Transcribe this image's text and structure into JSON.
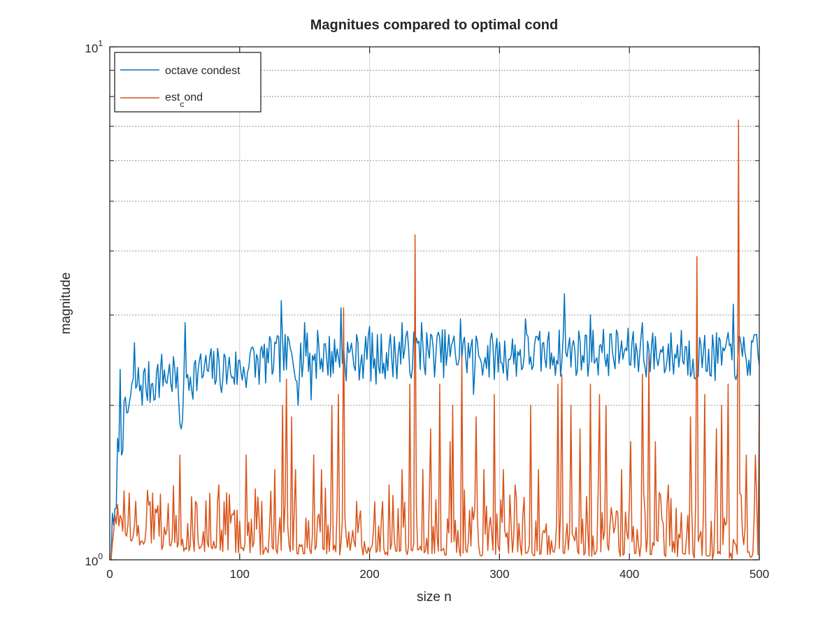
{
  "chart_data": {
    "type": "line",
    "title": "Magnitues compared to optimal cond",
    "xlabel": "size n",
    "ylabel": "magnitude",
    "xlim": [
      0,
      500
    ],
    "ylim": [
      1,
      10
    ],
    "yscale": "log",
    "grid": true,
    "legend_position": "top-left",
    "x_ticks": [
      "0",
      "100",
      "200",
      "300",
      "400",
      "500"
    ],
    "y_ticks": [
      {
        "base": "10",
        "exp": "0"
      },
      {
        "base": "10",
        "exp": "1"
      }
    ],
    "series_count_per_series": 500,
    "series": [
      {
        "name": "octave condest",
        "color": "#0072BD",
        "legend_label": "octave condest",
        "anchors": [
          [
            1,
            1.0
          ],
          [
            2,
            1.13
          ],
          [
            4,
            1.15
          ],
          [
            5,
            1.4
          ],
          [
            6,
            1.6
          ],
          [
            8,
            1.75
          ],
          [
            10,
            1.8
          ],
          [
            15,
            2.0
          ],
          [
            20,
            2.2
          ],
          [
            30,
            2.2
          ],
          [
            40,
            2.3
          ],
          [
            50,
            2.3
          ],
          [
            55,
            1.9
          ],
          [
            60,
            2.3
          ],
          [
            80,
            2.35
          ],
          [
            100,
            2.35
          ],
          [
            120,
            2.45
          ],
          [
            140,
            2.5
          ],
          [
            160,
            2.5
          ],
          [
            200,
            2.5
          ],
          [
            250,
            2.55
          ],
          [
            300,
            2.5
          ],
          [
            350,
            2.55
          ],
          [
            400,
            2.55
          ],
          [
            450,
            2.5
          ],
          [
            500,
            2.5
          ]
        ],
        "peaks": [
          [
            8,
            2.35
          ],
          [
            19,
            2.65
          ],
          [
            58,
            2.9
          ],
          [
            110,
            2.6
          ],
          [
            132,
            3.2
          ],
          [
            150,
            2.9
          ],
          [
            160,
            2.8
          ],
          [
            178,
            3.1
          ],
          [
            200,
            2.85
          ],
          [
            225,
            2.9
          ],
          [
            240,
            2.9
          ],
          [
            270,
            2.95
          ],
          [
            320,
            2.95
          ],
          [
            350,
            3.3
          ],
          [
            370,
            3.0
          ],
          [
            410,
            2.9
          ],
          [
            440,
            2.8
          ],
          [
            480,
            3.15
          ]
        ],
        "troughs": [
          [
            55,
            1.8
          ],
          [
            145,
            2.0
          ],
          [
            155,
            2.05
          ],
          [
            205,
            2.2
          ],
          [
            280,
            2.1
          ],
          [
            320,
            2.05
          ],
          [
            500,
            2.4
          ]
        ],
        "noise": 0.11,
        "seed": 7
      },
      {
        "name": "est_cond",
        "color": "#D95319",
        "legend_label": "est_cond",
        "anchors": [
          [
            1,
            1.0
          ],
          [
            3,
            1.15
          ],
          [
            6,
            1.2
          ],
          [
            10,
            1.15
          ],
          [
            20,
            1.1
          ],
          [
            40,
            1.07
          ],
          [
            80,
            1.06
          ],
          [
            120,
            1.05
          ],
          [
            200,
            1.05
          ],
          [
            300,
            1.04
          ],
          [
            400,
            1.04
          ],
          [
            500,
            1.03
          ]
        ],
        "peaks": [
          [
            15,
            1.35
          ],
          [
            33,
            1.35
          ],
          [
            54,
            1.6
          ],
          [
            66,
            1.3
          ],
          [
            84,
            1.4
          ],
          [
            98,
            1.25
          ],
          [
            105,
            1.6
          ],
          [
            117,
            1.3
          ],
          [
            127,
            1.5
          ],
          [
            133,
            2.0
          ],
          [
            136,
            2.25
          ],
          [
            140,
            1.9
          ],
          [
            143,
            1.5
          ],
          [
            157,
            1.6
          ],
          [
            163,
            1.5
          ],
          [
            171,
            2.0
          ],
          [
            176,
            2.1
          ],
          [
            180,
            3.1
          ],
          [
            190,
            1.3
          ],
          [
            210,
            1.3
          ],
          [
            215,
            1.4
          ],
          [
            225,
            1.5
          ],
          [
            231,
            2.2
          ],
          [
            235,
            4.3
          ],
          [
            241,
            1.5
          ],
          [
            247,
            1.8
          ],
          [
            254,
            2.2
          ],
          [
            262,
            1.7
          ],
          [
            264,
            2.0
          ],
          [
            271,
            2.5
          ],
          [
            282,
            1.9
          ],
          [
            288,
            1.5
          ],
          [
            296,
            2.1
          ],
          [
            303,
            1.5
          ],
          [
            312,
            1.4
          ],
          [
            324,
            2.0
          ],
          [
            330,
            1.5
          ],
          [
            345,
            2.2
          ],
          [
            348,
            2.3
          ],
          [
            355,
            2.0
          ],
          [
            362,
            1.8
          ],
          [
            370,
            2.2
          ],
          [
            377,
            2.1
          ],
          [
            382,
            2.0
          ],
          [
            394,
            1.5
          ],
          [
            401,
            1.7
          ],
          [
            410,
            2.3
          ],
          [
            415,
            2.5
          ],
          [
            420,
            1.7
          ],
          [
            430,
            1.4
          ],
          [
            447,
            1.9
          ],
          [
            452,
            3.9
          ],
          [
            458,
            2.1
          ],
          [
            467,
            1.8
          ],
          [
            471,
            2.0
          ],
          [
            476,
            2.2
          ],
          [
            484,
            7.2
          ],
          [
            490,
            1.6
          ],
          [
            497,
            1.6
          ],
          [
            500,
            2.0
          ]
        ],
        "troughs": [],
        "noise": 0.05,
        "seed": 13
      }
    ]
  },
  "legend": {
    "items": [
      {
        "label": "octave condest",
        "color": "#0072BD"
      },
      {
        "label_main": "est",
        "label_sub": "c",
        "label_rest": "ond",
        "color": "#D95319"
      }
    ]
  }
}
